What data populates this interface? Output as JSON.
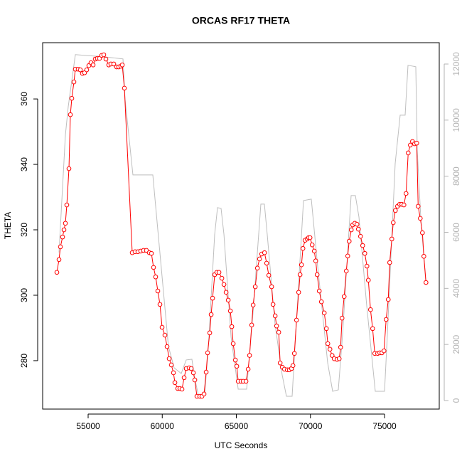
{
  "chart_data": {
    "type": "line",
    "title": "ORCAS RF17 THETA",
    "x_label": "UTC Seconds",
    "y_label": "THETA",
    "xlim": [
      51930,
      78693
    ],
    "ylim": [
      265.2,
      377.2
    ],
    "y2lim": [
      -305,
      12761
    ],
    "xticks": [
      55000,
      60000,
      65000,
      70000,
      75000
    ],
    "yticks": [
      280,
      300,
      320,
      340,
      360
    ],
    "y2ticks": [
      0,
      2000,
      4000,
      6000,
      8000,
      10000,
      12000
    ],
    "series": [
      {
        "color": "#ff0000",
        "markers": true,
        "x": [
          52890,
          53034,
          53130,
          53274,
          53370,
          53465,
          53561,
          53705,
          53801,
          53897,
          54041,
          54137,
          54329,
          54472,
          54616,
          54760,
          54904,
          55048,
          55192,
          55336,
          55480,
          55624,
          55767,
          55911,
          56055,
          56199,
          56391,
          56535,
          56727,
          56919,
          57063,
          57206,
          57302,
          57446,
          57974,
          58166,
          58358,
          58549,
          58741,
          58933,
          59125,
          59269,
          59413,
          59557,
          59701,
          59845,
          59989,
          60181,
          60325,
          60469,
          60613,
          60757,
          60853,
          61045,
          61189,
          61333,
          61477,
          61621,
          61813,
          61957,
          62101,
          62197,
          62341,
          62533,
          62677,
          62821,
          62965,
          63061,
          63205,
          63301,
          63397,
          63541,
          63685,
          63829,
          64021,
          64165,
          64309,
          64453,
          64597,
          64693,
          64789,
          64933,
          65029,
          65125,
          65317,
          65461,
          65653,
          65797,
          65893,
          66037,
          66133,
          66277,
          66421,
          66565,
          66709,
          66901,
          67045,
          67189,
          67381,
          67477,
          67621,
          67717,
          67861,
          67957,
          68101,
          68245,
          68437,
          68581,
          68725,
          68821,
          68917,
          69061,
          69205,
          69301,
          69397,
          69493,
          69637,
          69781,
          69877,
          69973,
          70117,
          70261,
          70357,
          70453,
          70597,
          70741,
          70933,
          71077,
          71173,
          71317,
          71461,
          71605,
          71797,
          71941,
          72037,
          72133,
          72277,
          72421,
          72517,
          72613,
          72757,
          72853,
          72997,
          73141,
          73237,
          73381,
          73525,
          73669,
          73813,
          73909,
          74053,
          74197,
          74341,
          74533,
          74677,
          74821,
          74965,
          75109,
          75253,
          75349,
          75493,
          75589,
          75733,
          75877,
          76021,
          76165,
          76309,
          76453,
          76597,
          76741,
          76885,
          77029,
          77173,
          77269,
          77413,
          77557,
          77653,
          77797
        ],
        "values": [
          307.0,
          310.9,
          314.8,
          317.8,
          320.0,
          322.0,
          327.6,
          338.7,
          355.2,
          360.2,
          365.2,
          369.1,
          369.1,
          368.9,
          367.8,
          368.0,
          368.9,
          370.2,
          371.1,
          370.4,
          372.2,
          372.4,
          372.4,
          373.3,
          373.5,
          372.2,
          370.4,
          370.7,
          370.7,
          369.8,
          369.8,
          370.0,
          370.4,
          363.3,
          313.0,
          313.3,
          313.3,
          313.5,
          313.7,
          313.7,
          313.0,
          312.8,
          308.5,
          305.6,
          301.3,
          297.2,
          290.2,
          287.8,
          284.3,
          280.6,
          278.7,
          276.3,
          273.3,
          271.5,
          271.5,
          271.3,
          274.8,
          277.6,
          277.8,
          277.6,
          276.3,
          274.1,
          269.1,
          269.1,
          269.1,
          269.8,
          276.5,
          282.4,
          288.5,
          294.1,
          299.1,
          306.3,
          307.0,
          307.0,
          305.2,
          303.3,
          300.9,
          298.5,
          295.2,
          290.4,
          285.2,
          280.2,
          278.3,
          273.7,
          273.7,
          273.7,
          273.7,
          277.4,
          281.6,
          290.9,
          297.0,
          302.6,
          308.3,
          311.1,
          312.6,
          313.0,
          309.8,
          306.1,
          302.6,
          297.2,
          293.7,
          290.6,
          288.7,
          279.3,
          278.0,
          277.4,
          277.2,
          277.2,
          277.6,
          278.5,
          282.2,
          292.4,
          300.9,
          306.3,
          309.3,
          314.3,
          316.8,
          317.2,
          317.6,
          317.6,
          315.4,
          313.5,
          310.5,
          306.3,
          301.3,
          298.0,
          294.6,
          289.8,
          285.2,
          283.5,
          281.6,
          280.6,
          280.4,
          280.6,
          284.1,
          293.0,
          299.6,
          307.4,
          312.0,
          316.5,
          320.0,
          321.5,
          322.0,
          321.7,
          320.2,
          318.0,
          315.2,
          312.8,
          308.9,
          304.6,
          295.6,
          289.8,
          282.2,
          282.2,
          282.4,
          282.4,
          283.0,
          292.6,
          298.7,
          310.0,
          317.2,
          322.2,
          325.9,
          327.2,
          327.8,
          327.8,
          327.6,
          331.1,
          343.5,
          345.9,
          347.0,
          346.3,
          346.5,
          327.2,
          323.5,
          319.1,
          311.9,
          303.9
        ]
      },
      {
        "color": "#bebebe",
        "axis": "y2",
        "markers": false,
        "x": [
          53034,
          53465,
          53657,
          54137,
          56007,
          57350,
          57494,
          58021,
          59364,
          59556,
          60419,
          60803,
          61283,
          61618,
          62002,
          62194,
          62434,
          62865,
          63105,
          63537,
          63729,
          63969,
          64165,
          64645,
          65125,
          65695,
          66127,
          66654,
          66894,
          67086,
          67613,
          68093,
          68381,
          68765,
          69004,
          69532,
          70059,
          70491,
          71163,
          71498,
          71882,
          72170,
          72745,
          73033,
          73273,
          73800,
          74376,
          75000,
          75192,
          75719,
          76055,
          76391,
          76583,
          77110,
          77206,
          77445,
          77781
        ],
        "values": [
          5279,
          9467,
          10482,
          12335,
          12259,
          12183,
          10736,
          8045,
          8045,
          6929,
          1929,
          1167,
          964,
          1447,
          1472,
          787,
          203,
          203,
          1853,
          5914,
          6878,
          6853,
          5914,
          2259,
          406,
          406,
          3122,
          7005,
          7005,
          5914,
          2716,
          914,
          152,
          152,
          2360,
          7132,
          7183,
          4771,
          1345,
          330,
          381,
          2360,
          7310,
          7310,
          6548,
          3376,
          330,
          330,
          2360,
          8451,
          10177,
          10177,
          11954,
          11903,
          8959,
          6523,
          4264
        ]
      }
    ]
  }
}
